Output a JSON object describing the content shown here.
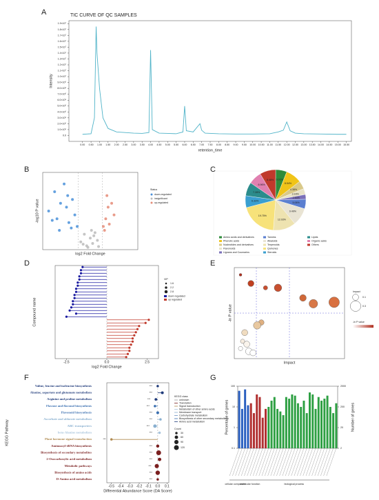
{
  "chart_data": [
    {
      "type": "line",
      "panel_label": "A",
      "title": "TIC CURVE OF QC SAMPLES",
      "x_label": "retention_time",
      "y_label": "Intensity",
      "color": "#4fb3c8",
      "x": [
        0,
        0.5,
        0.7,
        0.8,
        0.85,
        0.9,
        1.0,
        1.2,
        1.5,
        2,
        2.5,
        3,
        3.5,
        3.9,
        4.0,
        4.1,
        4.5,
        5,
        5.5,
        5.9,
        6.0,
        6.1,
        6.5,
        6.9,
        7.0,
        7.2,
        8,
        9,
        10,
        11,
        11.5,
        11.8,
        12.0,
        12.2,
        12.5,
        13,
        14,
        15,
        15.5
      ],
      "values": [
        200000,
        300000,
        3000000,
        18500000,
        14000000,
        12000000,
        8000000,
        3000000,
        1200000,
        600000,
        500000,
        400000,
        350000,
        500000,
        14500000,
        1000000,
        400000,
        350000,
        300000,
        600000,
        5000000,
        800000,
        600000,
        2000000,
        900000,
        400000,
        300000,
        250000,
        250000,
        300000,
        600000,
        900000,
        2300000,
        800000,
        400000,
        300000,
        250000,
        200000,
        200000
      ],
      "xlim": [
        -0.8,
        15.8
      ],
      "ylim": [
        -1000000,
        19500000
      ],
      "xticks": [
        {
          "value": 0,
          "label": "0.00"
        },
        {
          "value": 0.5,
          "label": "0.50"
        },
        {
          "value": 1,
          "label": "1.00"
        },
        {
          "value": 1.5,
          "label": "1.50"
        },
        {
          "value": 2,
          "label": "2.00"
        },
        {
          "value": 2.5,
          "label": "2.50"
        },
        {
          "value": 3,
          "label": "3.00"
        },
        {
          "value": 3.5,
          "label": "3.50"
        },
        {
          "value": 4,
          "label": "4.00"
        },
        {
          "value": 4.5,
          "label": "4.50"
        },
        {
          "value": 5,
          "label": "5.00"
        },
        {
          "value": 5.5,
          "label": "5.50"
        },
        {
          "value": 6,
          "label": "6.00"
        },
        {
          "value": 6.5,
          "label": "6.50"
        },
        {
          "value": 7,
          "label": "7.00"
        },
        {
          "value": 7.5,
          "label": "7.50"
        },
        {
          "value": 8,
          "label": "8.00"
        },
        {
          "value": 8.5,
          "label": "8.50"
        },
        {
          "value": 9,
          "label": "9.00"
        },
        {
          "value": 9.5,
          "label": "9.50"
        },
        {
          "value": 10,
          "label": "10.00"
        },
        {
          "value": 10.5,
          "label": "10.50"
        },
        {
          "value": 11,
          "label": "11.00"
        },
        {
          "value": 11.5,
          "label": "11.50"
        },
        {
          "value": 12,
          "label": "12.00"
        },
        {
          "value": 12.5,
          "label": "12.50"
        },
        {
          "value": 13,
          "label": "13.00"
        },
        {
          "value": 13.5,
          "label": "13.50"
        },
        {
          "value": 14,
          "label": "14.00"
        },
        {
          "value": 14.5,
          "label": "14.50"
        },
        {
          "value": 15,
          "label": "15.00"
        },
        {
          "value": 15.5,
          "label": "15.50"
        }
      ],
      "yticks": [
        {
          "value": 0,
          "label": "0.0"
        },
        {
          "value": 1000000,
          "label": "1.0×10⁶"
        },
        {
          "value": 2000000,
          "label": "2.0×10⁶"
        },
        {
          "value": 3000000,
          "label": "3.0×10⁶"
        },
        {
          "value": 4000000,
          "label": "4.0×10⁶"
        },
        {
          "value": 5000000,
          "label": "5.0×10⁶"
        },
        {
          "value": 6000000,
          "label": "6.0×10⁶"
        },
        {
          "value": 7000000,
          "label": "7.0×10⁶"
        },
        {
          "value": 8000000,
          "label": "8.0×10⁶"
        },
        {
          "value": 9000000,
          "label": "9.0×10⁶"
        },
        {
          "value": 10000000,
          "label": "1.0×10⁷"
        },
        {
          "value": 11000000,
          "label": "1.1×10⁷"
        },
        {
          "value": 12000000,
          "label": "1.2×10⁷"
        },
        {
          "value": 13000000,
          "label": "1.3×10⁷"
        },
        {
          "value": 14000000,
          "label": "1.4×10⁷"
        },
        {
          "value": 15000000,
          "label": "1.5×10⁷"
        },
        {
          "value": 16000000,
          "label": "1.6×10⁷"
        },
        {
          "value": 17000000,
          "label": "1.7×10⁷"
        },
        {
          "value": 18000000,
          "label": "1.8×10⁷"
        },
        {
          "value": 19000000,
          "label": "1.9×10⁷"
        }
      ]
    },
    {
      "type": "scatter",
      "panel_label": "B",
      "x_label": "log2 Fold Change",
      "y_label": "-log10 P value",
      "legend_title": "Status",
      "xlim": [
        -4,
        4
      ],
      "ylim": [
        0,
        10
      ],
      "series": [
        {
          "name": "down-regulated",
          "color": "#4a90d9",
          "x": [
            -3.5,
            -3,
            -2.8,
            -2.5,
            -2.2,
            -2,
            -1.8,
            -1.5,
            -1.3,
            -1.1,
            -2.6,
            -1.9,
            -1.6,
            -3.2
          ],
          "values": [
            5,
            7.5,
            4,
            6,
            8.5,
            5.5,
            3.5,
            6.5,
            4.5,
            3,
            2.5,
            7,
            2.8,
            3.8
          ]
        },
        {
          "name": "insignificant",
          "color": "#bbbbbb",
          "x": [
            -0.8,
            -0.5,
            -0.3,
            0,
            0.2,
            0.4,
            0.6,
            -0.2,
            0.1,
            -0.6,
            0.3,
            0.7
          ],
          "values": [
            1,
            2,
            0.5,
            1.5,
            0.8,
            2.2,
            1.2,
            0.3,
            2.5,
            0.7,
            1.8,
            0.4
          ]
        },
        {
          "name": "up-regulated",
          "color": "#e58b77",
          "x": [
            1.1,
            1.3,
            1.5,
            1.8,
            2,
            1.2,
            1.6,
            1.4
          ],
          "values": [
            3,
            4,
            5.5,
            6,
            4.5,
            2.5,
            3.3,
            7
          ]
        }
      ]
    },
    {
      "type": "pie",
      "panel_label": "C",
      "categories": [
        "Amino acids and derivatives",
        "Phenolic acids",
        "Nucleotides and derivatives",
        "Flavonoids",
        "Lignans and Coumarins",
        "Tannins",
        "Alkaloids",
        "Terpenoids",
        "Quinones",
        "Steroids",
        "Lipids",
        "Organic acids",
        "Others"
      ],
      "values": [
        6.01,
        8.54,
        4.38,
        3.16,
        2.53,
        5.06,
        9.49,
        12.03,
        19.75,
        6.33,
        7.28,
        6.96,
        8.48
      ],
      "value_labels": [
        "6.01%",
        "8.54%",
        "4.38%",
        "3.16%",
        "2.53%",
        "5.06%",
        "9.49%",
        "12.03%",
        "19.75%",
        "6.33%",
        "7.28%",
        "6.96%",
        "8.48%"
      ],
      "colors": [
        "#2e8b3a",
        "#f0c419",
        "#d9c98a",
        "#e8e3c8",
        "#7a6fb8",
        "#5b7fd0",
        "#e9e4d4",
        "#eee3b0",
        "#f7e27a",
        "#3a9fd0",
        "#2b8c8c",
        "#e080b0",
        "#c0392b"
      ]
    },
    {
      "type": "lollipop",
      "panel_label": "D",
      "x_label": "log2 Fold Change",
      "y_label": "Compound name",
      "categories": [
        null,
        null,
        null,
        null,
        null,
        null,
        null,
        null,
        null,
        null,
        null,
        null,
        null,
        null,
        null,
        null,
        null,
        null,
        null,
        null,
        null,
        null,
        null,
        null,
        null,
        null,
        null,
        null,
        null,
        null
      ],
      "series": [
        {
          "name": "down regulated",
          "color": "#1a1aa0",
          "values": [
            -1.5,
            -1.6,
            -1.6,
            -1.7,
            -1.7,
            -1.8,
            -1.8,
            -1.9,
            -1.9,
            -2.0,
            -2.0,
            -2.1,
            -2.1,
            -2.2,
            -2.3,
            -1.9,
            -2.5,
            null,
            null,
            null,
            null,
            null,
            null,
            null,
            null,
            null,
            null,
            null,
            null,
            null
          ]
        },
        {
          "name": "up regulated",
          "color": "#c0392b",
          "values": [
            null,
            null,
            null,
            null,
            null,
            null,
            null,
            null,
            null,
            null,
            null,
            null,
            null,
            null,
            null,
            null,
            null,
            2.6,
            2.4,
            2.0,
            1.9,
            1.8,
            1.7,
            1.6,
            1.6,
            1.5,
            1.4,
            1.4,
            1.3,
            1.2
          ]
        }
      ],
      "xlim": [
        -3.2,
        3.2
      ],
      "xticks": [
        -2.5,
        {
          "value": 0,
          "label": "0.0"
        },
        2.5
      ],
      "size_legend": {
        "title": "VIP",
        "values": [
          1.6,
          2.2,
          2.8
        ]
      }
    },
    {
      "type": "bubble",
      "panel_label": "E",
      "x_label": "Impact",
      "y_label": "-ln P value",
      "colorbar_title": "-ln P value",
      "x": [
        0,
        0.05,
        0.12,
        0.18,
        0.3,
        0.45,
        0.35,
        0.1,
        0.08,
        0.02,
        0.01,
        0.03,
        0,
        0.04,
        0.06
      ],
      "values": [
        5.8,
        5.2,
        4.9,
        4.9,
        4.2,
        3.9,
        3.8,
        2.5,
        2.3,
        1.8,
        1.2,
        1,
        0.7,
        0.5,
        0.4
      ],
      "sizes": [
        0.02,
        0.1,
        0.05,
        0.15,
        0.12,
        0.3,
        0.2,
        0.08,
        0.15,
        0.1,
        0.05,
        0.1,
        0.05,
        0.12,
        0.1
      ],
      "colors": [
        "#b03020",
        "#c04020",
        "#c85030",
        "#c85030",
        "#d06838",
        "#d87040",
        "#d87848",
        "#e0b080",
        "#e8c8a0",
        "#f0dcc0",
        "#f6ece0",
        "#faf4ec",
        "#ffffff",
        "#ffffff",
        "#ffffff"
      ],
      "xlim": [
        -0.03,
        0.5
      ],
      "ylim": [
        0,
        6.3
      ],
      "size_legend": {
        "title": "Impact",
        "values": [
          0.1,
          0.3
        ]
      }
    },
    {
      "type": "lollipop",
      "panel_label": "F",
      "x_label": "Differential Abundance Score (DA Score)",
      "y_label": "KEGG Pathway",
      "categories": [
        "Valine, leucine and isoleucine biosynthesis",
        "Alanine, aspartate and glutamate metabolism",
        "Arginine and proline metabolism",
        "Flavone and flavonol biosynthesis",
        "Flavonoid biosynthesis",
        "Ascorbate and aldarate metabolism",
        "ABC transporters",
        "beta-Alanine metabolism",
        "Plant hormone signal transduction",
        "Aminoacyl-tRNA biosynthesis",
        "Biosynthesis of secondary metabolites",
        "2-Oxocarboxylic acid metabolism",
        "Metabolic pathways",
        "Biosynthesis of amino acids",
        "D-Amino acid metabolism"
      ],
      "values": [
        0.0,
        0.05,
        -0.02,
        -0.03,
        0.0,
        0.03,
        -0.03,
        0.02,
        -0.5,
        0.0,
        0.01,
        0.02,
        -0.01,
        0.0,
        0.0
      ],
      "counts": [
        30,
        40,
        35,
        30,
        40,
        30,
        60,
        30,
        30,
        50,
        120,
        60,
        90,
        100,
        30
      ],
      "annotations": [
        "***",
        "***",
        "***",
        "***",
        "***",
        "***",
        "***",
        "***",
        "***",
        "***",
        "***",
        "***",
        "***",
        "***",
        "***"
      ],
      "colors": [
        "#1f3a7a",
        "#1f3a7a",
        "#1f3a7a",
        "#3a6fb0",
        "#3a6fb0",
        "#8ab0d0",
        "#8ab0d0",
        "#a8c4dc",
        "#b08a50",
        "#7a1f1f",
        "#7a1f1f",
        "#7a1f1f",
        "#7a1f1f",
        "#7a1f1f",
        "#7a1f1f"
      ],
      "xlim": [
        -0.55,
        0.12
      ],
      "xticks": [
        -0.5,
        -0.4,
        -0.3,
        -0.2,
        -0.1,
        {
          "value": 0,
          "label": "0.0"
        },
        0.1
      ],
      "size_legend": {
        "title": "Count",
        "values": [
          30,
          60,
          90,
          120
        ]
      },
      "class_legend": {
        "title": "KEGG class",
        "items": [
          {
            "name": "unknown",
            "color": "#999999"
          },
          {
            "name": "Translation",
            "color": "#7a1f1f"
          },
          {
            "name": "Signal transduction",
            "color": "#b08a50"
          },
          {
            "name": "Metabolism of other amino acids",
            "color": "#a8c4dc"
          },
          {
            "name": "Membrane transport",
            "color": "#8ab0d0"
          },
          {
            "name": "Carbohydrate metabolism",
            "color": "#6a90c0"
          },
          {
            "name": "Biosynthesis of other secondary metabolites",
            "color": "#3a6fb0"
          },
          {
            "name": "Amino acid metabolism",
            "color": "#1f3a7a"
          }
        ]
      }
    },
    {
      "type": "bar",
      "panel_label": "G",
      "y_label": "Percentage of genes",
      "y2_label": "Number of genes",
      "log": true,
      "categories": [
        null,
        null,
        null,
        null,
        null,
        null,
        null,
        null,
        null,
        null,
        null,
        null,
        null,
        null,
        null,
        null,
        null,
        null,
        null,
        null,
        null,
        null,
        null,
        null,
        null,
        null,
        null,
        null,
        null,
        null,
        null,
        null,
        null,
        null
      ],
      "series": [
        {
          "name": "cellular component",
          "color": "#2a5fc0",
          "values": [
            60,
            8,
            70,
            12,
            null,
            null,
            null,
            null,
            null,
            null,
            null,
            null,
            null,
            null,
            null,
            null,
            null,
            null,
            null,
            null,
            null,
            null,
            null,
            null,
            null,
            null,
            null,
            null,
            null,
            null,
            null,
            null,
            null,
            null
          ]
        },
        {
          "name": "molecular function",
          "color": "#b03030",
          "values": [
            null,
            null,
            null,
            null,
            15,
            5,
            40,
            30,
            3,
            8,
            null,
            null,
            null,
            null,
            null,
            null,
            null,
            null,
            null,
            null,
            null,
            null,
            null,
            null,
            null,
            null,
            null,
            null,
            null,
            null,
            null,
            null,
            null,
            null
          ]
        },
        {
          "name": "biological process",
          "color": "#2ea043",
          "values": [
            null,
            null,
            null,
            null,
            null,
            null,
            null,
            null,
            null,
            null,
            10,
            20,
            30,
            8,
            6,
            4,
            30,
            25,
            40,
            35,
            15,
            10,
            20,
            5,
            50,
            40,
            8,
            30,
            20,
            25,
            35,
            10,
            5,
            15
          ]
        }
      ],
      "ylim": [
        0.1,
        100
      ],
      "yticks": [
        0.1,
        1,
        10,
        100
      ],
      "y2lim": [
        2,
        2000
      ],
      "y2ticks": [
        2,
        20,
        200,
        2000
      ]
    }
  ]
}
